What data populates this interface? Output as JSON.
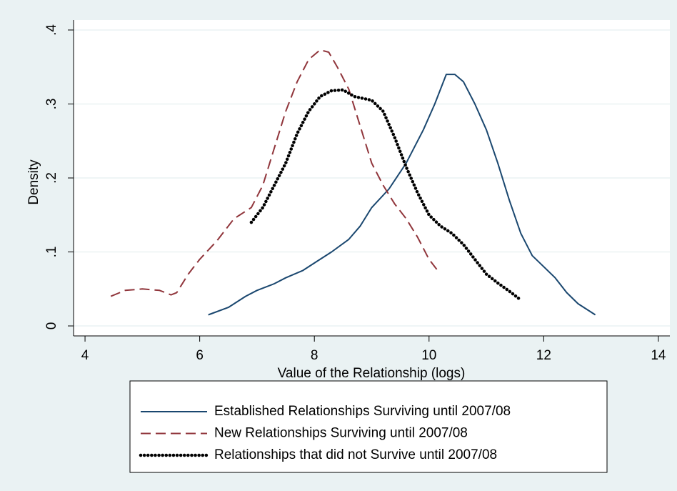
{
  "chart_data": {
    "type": "line",
    "xlabel": "Value of the Relationship (logs)",
    "ylabel": "Density",
    "xlim": [
      3.8,
      14.2
    ],
    "ylim": [
      -0.0135,
      0.4135
    ],
    "xticks": [
      4,
      6,
      8,
      10,
      12,
      14
    ],
    "yticks": [
      0,
      {
        "value": 0.1,
        "label": ".1"
      },
      {
        "value": 0.2,
        "label": ".2"
      },
      {
        "value": 0.3,
        "label": ".3"
      },
      {
        "value": 0.4,
        "label": ".4"
      }
    ],
    "grid": true,
    "legend": "bottom",
    "series": [
      {
        "name": "Established Relationships Surviving until 2007/08",
        "color": "#1a476f",
        "style": "solid",
        "x": [
          6.15,
          6.5,
          6.8,
          7.0,
          7.3,
          7.5,
          7.8,
          8.0,
          8.3,
          8.6,
          8.8,
          9.0,
          9.3,
          9.6,
          9.9,
          10.1,
          10.3,
          10.45,
          10.6,
          10.8,
          11.0,
          11.2,
          11.4,
          11.6,
          11.8,
          12.0,
          12.2,
          12.4,
          12.6,
          12.9
        ],
        "values": [
          0.015,
          0.025,
          0.04,
          0.048,
          0.057,
          0.065,
          0.075,
          0.085,
          0.1,
          0.117,
          0.135,
          0.16,
          0.185,
          0.22,
          0.265,
          0.3,
          0.34,
          0.34,
          0.33,
          0.3,
          0.265,
          0.22,
          0.17,
          0.125,
          0.095,
          0.08,
          0.065,
          0.045,
          0.03,
          0.015
        ]
      },
      {
        "name": "New Relationships Surviving until 2007/08",
        "color": "#90353b",
        "style": "dashed",
        "x": [
          4.45,
          4.7,
          5.0,
          5.3,
          5.5,
          5.6,
          5.8,
          6.0,
          6.3,
          6.6,
          6.9,
          7.1,
          7.3,
          7.5,
          7.7,
          7.9,
          8.1,
          8.25,
          8.4,
          8.6,
          8.8,
          9.0,
          9.2,
          9.4,
          9.6,
          9.8,
          10.0,
          10.15
        ],
        "values": [
          0.04,
          0.048,
          0.05,
          0.048,
          0.042,
          0.045,
          0.07,
          0.09,
          0.115,
          0.145,
          0.16,
          0.19,
          0.24,
          0.29,
          0.33,
          0.36,
          0.373,
          0.37,
          0.35,
          0.32,
          0.27,
          0.22,
          0.19,
          0.165,
          0.145,
          0.12,
          0.09,
          0.075
        ]
      },
      {
        "name": "Relationships that did not Survive until 2007/08",
        "color": "#000000",
        "style": "dotted",
        "x": [
          6.9,
          7.1,
          7.3,
          7.5,
          7.7,
          7.9,
          8.1,
          8.3,
          8.5,
          8.7,
          9.0,
          9.2,
          9.4,
          9.6,
          9.8,
          10.0,
          10.2,
          10.4,
          10.6,
          10.8,
          11.0,
          11.2,
          11.4,
          11.6
        ],
        "values": [
          0.14,
          0.16,
          0.19,
          0.22,
          0.26,
          0.29,
          0.31,
          0.318,
          0.319,
          0.31,
          0.305,
          0.29,
          0.255,
          0.215,
          0.18,
          0.15,
          0.135,
          0.125,
          0.11,
          0.09,
          0.07,
          0.058,
          0.047,
          0.035
        ]
      }
    ]
  }
}
